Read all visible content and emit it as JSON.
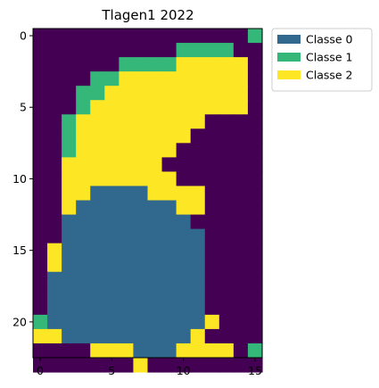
{
  "chart_data": {
    "type": "heatmap",
    "title": "Tlagen1 2022",
    "xlabel": "",
    "ylabel": "",
    "x_ticks": [
      0,
      5,
      10,
      15
    ],
    "y_ticks": [
      0,
      5,
      10,
      15,
      20
    ],
    "xlim": [
      -0.5,
      15.5
    ],
    "ylim": [
      22.5,
      -0.5
    ],
    "grid": false,
    "legend_position": "outside-top-right",
    "colors": {
      "background": "#440154",
      "Classe 0": "#31688e",
      "Classe 1": "#35b779",
      "Classe 2": "#fde725"
    },
    "legend": [
      {
        "label": "Classe 0",
        "color": "#31688e"
      },
      {
        "label": "Classe 1",
        "color": "#35b779"
      },
      {
        "label": "Classe 2",
        "color": "#fde725"
      }
    ],
    "grid_values": [
      "...............1",
      "..........1111..",
      "......111122222.",
      "....11222222222.",
      "...112222222222.",
      "...122222222222.",
      "..1222222222....",
      "..122222222.....",
      "..12222222......",
      "..2222222.......",
      "..22222222......",
      "..2200002222....",
      "..2000000022....",
      "..000000000.....",
      "..0000000000....",
      ".20000000000....",
      ".20000000000....",
      ".00000000000....",
      ".00000000000....",
      ".00000000000....",
      "1000000000002...",
      "220000000002....",
      "....2220002222.1",
      ".......2........"
    ],
    "value_legend": {
      ".": "background",
      "0": "Classe 0",
      "1": "Classe 1",
      "2": "Classe 2"
    }
  }
}
